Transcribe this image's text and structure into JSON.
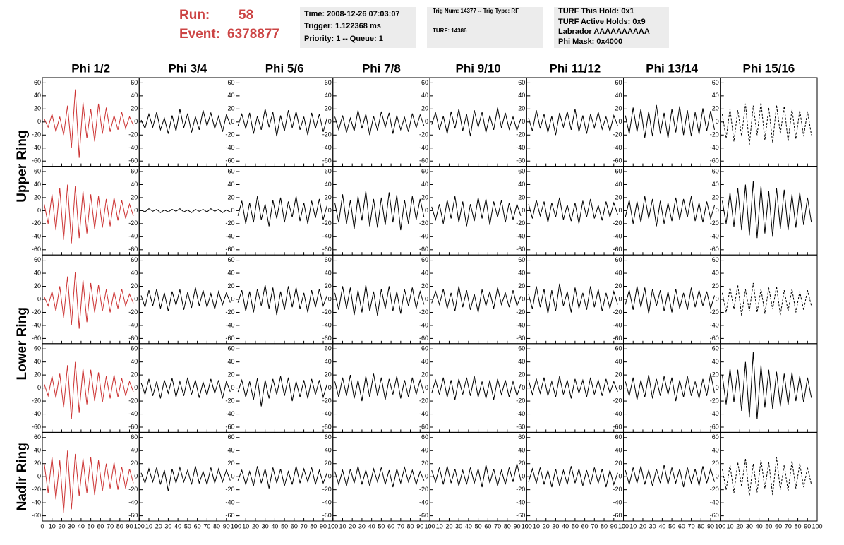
{
  "header": {
    "run_label": "Run:",
    "run": "58",
    "event_label": "Event:",
    "event": "6378877",
    "boxes": [
      [
        "Time: 2008-12-26 07:03:07",
        "Trigger: 1.122368 ms",
        "Priority: 1 -- Queue: 1"
      ],
      [
        "Trig Num: 14377 -- Trig Type: RF",
        "TURF: 14386"
      ],
      [
        "TURF This Hold: 0x1",
        "TURF Active Holds: 0x9",
        "Labrador AAAAAAAAAA",
        "Phi Mask: 0x4000"
      ]
    ]
  },
  "chart_data": {
    "type": "line",
    "columns": [
      "Phi 1/2",
      "Phi 3/4",
      "Phi 5/6",
      "Phi 7/8",
      "Phi 9/10",
      "Phi 11/12",
      "Phi 13/14",
      "Phi 15/16"
    ],
    "row_labels": [
      "Upper Ring",
      "Lower Ring",
      "Nadir Ring"
    ],
    "xlim": [
      0,
      100
    ],
    "ylim": [
      -68,
      68
    ],
    "xticks": [
      0,
      10,
      20,
      30,
      40,
      50,
      60,
      70,
      80,
      90,
      100
    ],
    "yticks": [
      -60,
      -40,
      -20,
      0,
      20,
      40,
      60
    ],
    "x": [
      2,
      6,
      10,
      14,
      18,
      22,
      26,
      30,
      34,
      38,
      42,
      46,
      50,
      54,
      58,
      62,
      66,
      70,
      74,
      78,
      82,
      86,
      90,
      94
    ],
    "series": [
      {
        "color": "#cc3333",
        "line_style": "solid",
        "values": [
          5,
          -8,
          12,
          -15,
          8,
          -20,
          25,
          -40,
          50,
          -55,
          30,
          -25,
          20,
          -30,
          28,
          -18,
          22,
          -15,
          10,
          -12,
          15,
          -10,
          8,
          -5
        ]
      },
      {
        "color": "#000000",
        "line_style": "solid",
        "values": [
          3,
          -10,
          12,
          -8,
          15,
          -12,
          6,
          -18,
          10,
          -14,
          20,
          -9,
          13,
          -16,
          8,
          -12,
          18,
          -6,
          14,
          -10,
          9,
          -15,
          11,
          -4
        ]
      },
      {
        "color": "#000000",
        "line_style": "solid",
        "values": [
          -6,
          12,
          -10,
          14,
          -18,
          9,
          -12,
          20,
          -8,
          15,
          -22,
          10,
          -14,
          18,
          -9,
          16,
          -12,
          8,
          -20,
          14,
          -10,
          12,
          -15,
          6
        ]
      },
      {
        "color": "#000000",
        "line_style": "solid",
        "values": [
          8,
          -12,
          10,
          -16,
          6,
          -14,
          18,
          -10,
          12,
          -20,
          9,
          -13,
          16,
          -8,
          14,
          -18,
          10,
          -12,
          7,
          -15,
          13,
          -9,
          11,
          -6
        ]
      },
      {
        "color": "#000000",
        "line_style": "solid",
        "values": [
          -4,
          14,
          -12,
          9,
          -18,
          16,
          -10,
          20,
          -14,
          12,
          -22,
          18,
          -8,
          15,
          -16,
          10,
          -12,
          22,
          -9,
          14,
          -11,
          8,
          -13,
          5
        ]
      },
      {
        "color": "#000000",
        "line_style": "solid",
        "values": [
          6,
          -14,
          18,
          -10,
          12,
          -16,
          9,
          -20,
          14,
          -8,
          16,
          -12,
          20,
          -15,
          10,
          -18,
          12,
          -9,
          15,
          -11,
          8,
          -14,
          10,
          -6
        ]
      },
      {
        "color": "#000000",
        "line_style": "solid",
        "values": [
          10,
          -18,
          22,
          -15,
          20,
          -24,
          16,
          -22,
          26,
          -18,
          14,
          -25,
          20,
          -16,
          24,
          -20,
          18,
          -22,
          15,
          -19,
          21,
          -14,
          17,
          -12
        ]
      },
      {
        "color": "#000000",
        "line_style": "dashed",
        "values": [
          12,
          -25,
          20,
          -30,
          18,
          -22,
          28,
          -35,
          25,
          -20,
          30,
          -28,
          22,
          -32,
          26,
          -18,
          24,
          -30,
          20,
          -26,
          18,
          -22,
          16,
          -20
        ]
      },
      {
        "color": "#cc3333",
        "line_style": "solid",
        "values": [
          10,
          -20,
          25,
          -30,
          35,
          -45,
          40,
          -50,
          38,
          -42,
          30,
          -35,
          25,
          -28,
          22,
          -26,
          18,
          -24,
          20,
          -15,
          16,
          -12,
          10,
          -8
        ]
      },
      {
        "color": "#000000",
        "line_style": "solid",
        "values": [
          1,
          -2,
          3,
          -1,
          2,
          -3,
          1,
          -2,
          2,
          -1,
          3,
          -2,
          1,
          -3,
          2,
          -1,
          2,
          -2,
          3,
          -1,
          2,
          -3,
          1,
          -2
        ]
      },
      {
        "color": "#000000",
        "line_style": "solid",
        "values": [
          -8,
          15,
          -20,
          12,
          -18,
          22,
          -14,
          10,
          -24,
          16,
          -12,
          20,
          -18,
          14,
          -10,
          22,
          -16,
          12,
          -20,
          15,
          -11,
          18,
          -14,
          8
        ]
      },
      {
        "color": "#000000",
        "line_style": "solid",
        "values": [
          12,
          -18,
          25,
          -20,
          16,
          -28,
          22,
          -15,
          30,
          -24,
          18,
          -26,
          20,
          -22,
          28,
          -18,
          24,
          -30,
          16,
          -20,
          22,
          -14,
          18,
          -10
        ]
      },
      {
        "color": "#000000",
        "line_style": "solid",
        "values": [
          6,
          -14,
          10,
          -20,
          16,
          -12,
          22,
          -18,
          14,
          -24,
          10,
          -16,
          20,
          -12,
          18,
          -22,
          14,
          -10,
          16,
          -18,
          12,
          -14,
          10,
          -8
        ]
      },
      {
        "color": "#000000",
        "line_style": "solid",
        "values": [
          10,
          -12,
          16,
          -8,
          14,
          -18,
          12,
          -10,
          20,
          -14,
          9,
          -16,
          12,
          -20,
          15,
          -10,
          18,
          -12,
          8,
          -15,
          14,
          -10,
          12,
          -6
        ]
      },
      {
        "color": "#000000",
        "line_style": "solid",
        "values": [
          -10,
          16,
          -20,
          14,
          -18,
          22,
          -12,
          18,
          -24,
          15,
          -20,
          12,
          -16,
          20,
          -14,
          18,
          -10,
          22,
          -16,
          12,
          -18,
          14,
          -12,
          8
        ]
      },
      {
        "color": "#000000",
        "line_style": "solid",
        "values": [
          15,
          -20,
          28,
          -25,
          35,
          -30,
          40,
          -38,
          45,
          -42,
          38,
          -35,
          30,
          -40,
          35,
          -28,
          32,
          -30,
          25,
          -26,
          28,
          -22,
          20,
          -18
        ]
      },
      {
        "color": "#cc3333",
        "line_style": "solid",
        "values": [
          4,
          -10,
          12,
          -18,
          20,
          -28,
          35,
          -40,
          42,
          -45,
          30,
          -35,
          25,
          -20,
          22,
          -18,
          15,
          -20,
          12,
          -14,
          16,
          -10,
          8,
          -6
        ]
      },
      {
        "color": "#000000",
        "line_style": "solid",
        "values": [
          6,
          -12,
          14,
          -10,
          16,
          -14,
          10,
          -18,
          12,
          -9,
          15,
          -16,
          11,
          -13,
          18,
          -10,
          14,
          -12,
          9,
          -15,
          12,
          -8,
          10,
          -5
        ]
      },
      {
        "color": "#000000",
        "line_style": "solid",
        "values": [
          -5,
          14,
          -18,
          12,
          -20,
          16,
          -10,
          22,
          -14,
          18,
          -24,
          12,
          -16,
          20,
          -12,
          18,
          -15,
          10,
          -20,
          14,
          -12,
          16,
          -10,
          6
        ]
      },
      {
        "color": "#000000",
        "line_style": "solid",
        "values": [
          10,
          -16,
          20,
          -14,
          18,
          -24,
          14,
          -20,
          22,
          -18,
          12,
          -25,
          16,
          -14,
          20,
          -18,
          12,
          -22,
          15,
          -10,
          18,
          -14,
          12,
          -8
        ]
      },
      {
        "color": "#000000",
        "line_style": "solid",
        "values": [
          -6,
          12,
          -8,
          16,
          -14,
          10,
          -18,
          20,
          -12,
          14,
          -16,
          8,
          -20,
          15,
          -10,
          12,
          -14,
          18,
          -8,
          10,
          -12,
          14,
          -10,
          5
        ]
      },
      {
        "color": "#000000",
        "line_style": "solid",
        "values": [
          8,
          -15,
          20,
          -12,
          16,
          -22,
          14,
          -18,
          24,
          -10,
          12,
          -20,
          18,
          -14,
          10,
          -16,
          20,
          -12,
          15,
          -18,
          10,
          -14,
          12,
          -8
        ]
      },
      {
        "color": "#000000",
        "line_style": "solid",
        "values": [
          -8,
          14,
          -16,
          20,
          -12,
          18,
          -22,
          16,
          -10,
          14,
          -18,
          12,
          -20,
          16,
          -14,
          10,
          -16,
          18,
          -12,
          14,
          -10,
          12,
          -14,
          6
        ]
      },
      {
        "color": "#000000",
        "line_style": "dashed",
        "values": [
          10,
          -20,
          18,
          -15,
          22,
          -25,
          15,
          -18,
          25,
          -20,
          16,
          -22,
          18,
          -15,
          20,
          -24,
          14,
          -18,
          16,
          -20,
          12,
          -16,
          14,
          -10
        ]
      },
      {
        "color": "#cc3333",
        "line_style": "solid",
        "values": [
          6,
          -12,
          18,
          -15,
          22,
          -30,
          35,
          -48,
          40,
          -38,
          30,
          -25,
          28,
          -20,
          24,
          -22,
          18,
          -16,
          20,
          -14,
          15,
          -12,
          10,
          -6
        ]
      },
      {
        "color": "#000000",
        "line_style": "solid",
        "values": [
          8,
          -10,
          14,
          -12,
          10,
          -16,
          12,
          -8,
          15,
          -14,
          10,
          -12,
          16,
          -10,
          12,
          -15,
          9,
          -11,
          14,
          -8,
          12,
          -16,
          10,
          -6
        ]
      },
      {
        "color": "#000000",
        "line_style": "solid",
        "values": [
          -6,
          12,
          -14,
          10,
          -18,
          15,
          -28,
          12,
          -16,
          14,
          -10,
          18,
          -12,
          16,
          -20,
          10,
          -14,
          12,
          -16,
          14,
          -10,
          12,
          -14,
          6
        ]
      },
      {
        "color": "#000000",
        "line_style": "solid",
        "values": [
          10,
          -14,
          16,
          -12,
          20,
          -16,
          12,
          -20,
          18,
          -14,
          22,
          -12,
          16,
          -18,
          14,
          -10,
          18,
          -16,
          12,
          -14,
          16,
          -10,
          12,
          -8
        ]
      },
      {
        "color": "#000000",
        "line_style": "solid",
        "values": [
          -8,
          12,
          -10,
          16,
          -14,
          12,
          -18,
          14,
          -10,
          16,
          -12,
          18,
          -14,
          10,
          -16,
          12,
          -18,
          14,
          -10,
          12,
          -14,
          10,
          -12,
          6
        ]
      },
      {
        "color": "#000000",
        "line_style": "solid",
        "values": [
          12,
          -10,
          14,
          -8,
          16,
          -12,
          10,
          -14,
          18,
          -10,
          12,
          -16,
          14,
          -8,
          12,
          -14,
          16,
          -10,
          12,
          -12,
          14,
          -8,
          10,
          -6
        ]
      },
      {
        "color": "#000000",
        "line_style": "solid",
        "values": [
          10,
          -12,
          16,
          -18,
          12,
          -14,
          20,
          -16,
          14,
          -12,
          18,
          -10,
          16,
          -20,
          12,
          -14,
          18,
          -12,
          10,
          -16,
          14,
          -12,
          22,
          -8
        ]
      },
      {
        "color": "#000000",
        "line_style": "solid",
        "values": [
          20,
          -25,
          30,
          -22,
          28,
          -35,
          40,
          -45,
          55,
          -48,
          35,
          -30,
          28,
          -32,
          25,
          -28,
          22,
          -26,
          24,
          -20,
          18,
          -22,
          16,
          -15
        ]
      },
      {
        "color": "#cc3333",
        "line_style": "solid",
        "values": [
          20,
          -25,
          30,
          -35,
          25,
          -55,
          40,
          -50,
          35,
          -30,
          28,
          -25,
          30,
          -28,
          25,
          -22,
          20,
          -18,
          22,
          -20,
          15,
          -18,
          12,
          -10
        ]
      },
      {
        "color": "#000000",
        "line_style": "solid",
        "values": [
          6,
          -10,
          12,
          -8,
          14,
          -12,
          10,
          -22,
          12,
          -10,
          14,
          -8,
          10,
          -12,
          16,
          -10,
          8,
          -12,
          14,
          -10,
          12,
          -8,
          10,
          -6
        ]
      },
      {
        "color": "#000000",
        "line_style": "solid",
        "values": [
          -6,
          10,
          -12,
          8,
          -14,
          16,
          -10,
          12,
          -18,
          14,
          -10,
          12,
          -14,
          8,
          -12,
          16,
          -10,
          12,
          -8,
          14,
          -12,
          10,
          -10,
          6
        ]
      },
      {
        "color": "#000000",
        "line_style": "solid",
        "values": [
          8,
          -12,
          10,
          -14,
          12,
          -10,
          16,
          -12,
          10,
          -14,
          12,
          -8,
          14,
          -12,
          10,
          -16,
          12,
          -10,
          14,
          -8,
          10,
          -12,
          8,
          -6
        ]
      },
      {
        "color": "#000000",
        "line_style": "solid",
        "values": [
          10,
          -8,
          14,
          -12,
          16,
          -10,
          12,
          -14,
          10,
          -12,
          14,
          -10,
          12,
          -16,
          18,
          -10,
          12,
          -14,
          10,
          -12,
          14,
          -8,
          20,
          -6
        ]
      },
      {
        "color": "#000000",
        "line_style": "solid",
        "values": [
          -8,
          12,
          -10,
          14,
          -12,
          10,
          -16,
          12,
          -14,
          10,
          -12,
          16,
          -10,
          12,
          -14,
          10,
          -12,
          14,
          -10,
          12,
          -16,
          10,
          -12,
          6
        ]
      },
      {
        "color": "#000000",
        "line_style": "solid",
        "values": [
          10,
          -12,
          14,
          -10,
          16,
          -12,
          10,
          -14,
          12,
          -10,
          18,
          -12,
          14,
          -10,
          12,
          -16,
          14,
          -10,
          12,
          -14,
          16,
          -10,
          12,
          -8
        ]
      },
      {
        "color": "#000000",
        "line_style": "dashed",
        "values": [
          12,
          -20,
          18,
          -25,
          22,
          -15,
          28,
          -30,
          20,
          -24,
          26,
          -18,
          22,
          -28,
          30,
          -20,
          18,
          -22,
          24,
          -18,
          20,
          -16,
          14,
          -12
        ]
      }
    ]
  }
}
